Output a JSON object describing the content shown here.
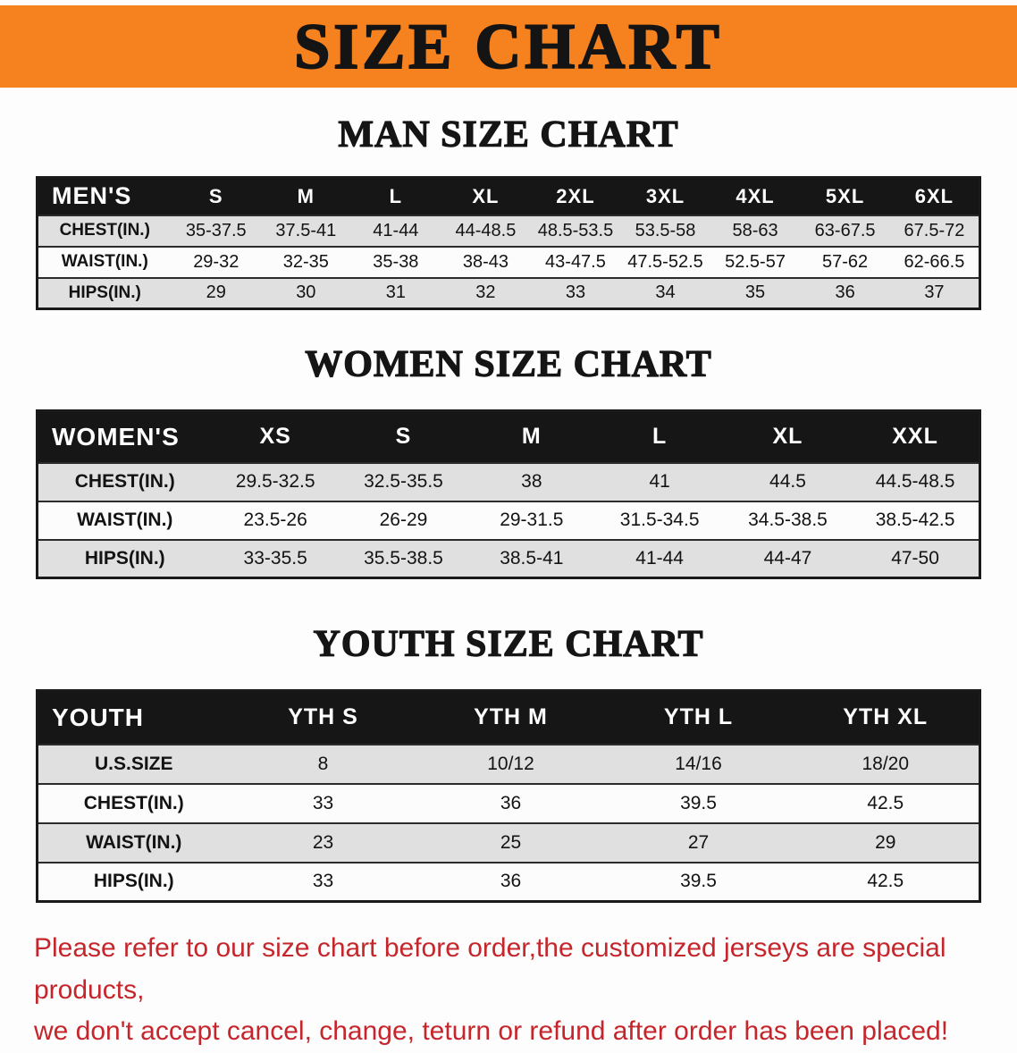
{
  "banner": {
    "title": "SIZE CHART",
    "bg_color": "#F5821F"
  },
  "sections": [
    {
      "id": "men",
      "heading": "MAN SIZE CHART",
      "table": {
        "header": [
          "MEN'S",
          "S",
          "M",
          "L",
          "XL",
          "2XL",
          "3XL",
          "4XL",
          "5XL",
          "6XL"
        ],
        "rows": [
          [
            "CHEST(IN.)",
            "35-37.5",
            "37.5-41",
            "41-44",
            "44-48.5",
            "48.5-53.5",
            "53.5-58",
            "58-63",
            "63-67.5",
            "67.5-72"
          ],
          [
            "WAIST(IN.)",
            "29-32",
            "32-35",
            "35-38",
            "38-43",
            "43-47.5",
            "47.5-52.5",
            "52.5-57",
            "57-62",
            "62-66.5"
          ],
          [
            "HIPS(IN.)",
            "29",
            "30",
            "31",
            "32",
            "33",
            "34",
            "35",
            "36",
            "37"
          ]
        ]
      }
    },
    {
      "id": "women",
      "heading": "WOMEN SIZE CHART",
      "table": {
        "header": [
          "WOMEN'S",
          "XS",
          "S",
          "M",
          "L",
          "XL",
          "XXL"
        ],
        "rows": [
          [
            "CHEST(IN.)",
            "29.5-32.5",
            "32.5-35.5",
            "38",
            "41",
            "44.5",
            "44.5-48.5"
          ],
          [
            "WAIST(IN.)",
            "23.5-26",
            "26-29",
            "29-31.5",
            "31.5-34.5",
            "34.5-38.5",
            "38.5-42.5"
          ],
          [
            "HIPS(IN.)",
            "33-35.5",
            "35.5-38.5",
            "38.5-41",
            "41-44",
            "44-47",
            "47-50"
          ]
        ]
      }
    },
    {
      "id": "youth",
      "heading": "YOUTH SIZE CHART",
      "table": {
        "header": [
          "YOUTH",
          "YTH S",
          "YTH M",
          "YTH L",
          "YTH XL"
        ],
        "rows": [
          [
            "U.S.SIZE",
            "8",
            "10/12",
            "14/16",
            "18/20"
          ],
          [
            "CHEST(IN.)",
            "33",
            "36",
            "39.5",
            "42.5"
          ],
          [
            "WAIST(IN.)",
            "23",
            "25",
            "27",
            "29"
          ],
          [
            "HIPS(IN.)",
            "33",
            "36",
            "39.5",
            "42.5"
          ]
        ]
      }
    }
  ],
  "disclaimer": {
    "line1": "Please refer to our size chart before order,the customized jerseys are special products,",
    "line2": "we don't accept cancel, change, teturn or refund after order has been placed!",
    "color": "#C5262C"
  }
}
